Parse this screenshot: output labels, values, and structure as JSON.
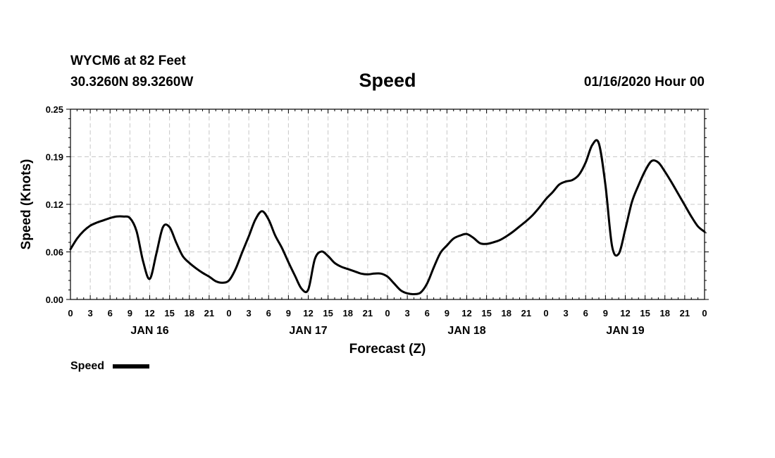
{
  "header": {
    "station": "WYCM6 at 82 Feet",
    "coords": "30.3260N 89.3260W",
    "title": "Speed",
    "date": "01/16/2020 Hour 00"
  },
  "chart_data": {
    "type": "line",
    "title": "Speed",
    "xlabel": "Forecast (Z)",
    "ylabel": "Speed (Knots)",
    "ylim": [
      0,
      0.25
    ],
    "xlim": [
      0,
      96
    ],
    "x_unit": "forecast hours",
    "y_ticks": [
      "0.00",
      "0.06",
      "0.12",
      "0.19",
      "0.25"
    ],
    "x_tick_labels": [
      "0",
      "3",
      "6",
      "9",
      "12",
      "15",
      "18",
      "21",
      "0",
      "3",
      "6",
      "9",
      "12",
      "15",
      "18",
      "21",
      "0",
      "3",
      "6",
      "9",
      "12",
      "15",
      "18",
      "21",
      "0",
      "3",
      "6",
      "9",
      "12",
      "15",
      "18",
      "21",
      "0"
    ],
    "day_labels": [
      {
        "label": "JAN 16",
        "hour": 12
      },
      {
        "label": "JAN 17",
        "hour": 36
      },
      {
        "label": "JAN 18",
        "hour": 60
      },
      {
        "label": "JAN 19",
        "hour": 84
      }
    ],
    "grid": true,
    "legend": "bottom-left",
    "series": [
      {
        "name": "Speed",
        "color": "#000000",
        "x": [
          0,
          1,
          2,
          3,
          4,
          5,
          6,
          7,
          8,
          9,
          10,
          11,
          12,
          13,
          14,
          15,
          16,
          17,
          18,
          19,
          20,
          21,
          22,
          23,
          24,
          25,
          26,
          27,
          28,
          29,
          30,
          31,
          32,
          33,
          34,
          35,
          36,
          37,
          38,
          39,
          40,
          41,
          42,
          43,
          44,
          45,
          46,
          47,
          48,
          49,
          50,
          51,
          52,
          53,
          54,
          55,
          56,
          57,
          58,
          59,
          60,
          61,
          62,
          63,
          64,
          65,
          66,
          67,
          68,
          69,
          70,
          71,
          72,
          73,
          74,
          75,
          76,
          77,
          78,
          79,
          80,
          81,
          82,
          83,
          84,
          85,
          86,
          87,
          88,
          89,
          90,
          91,
          92,
          93,
          94,
          95,
          96
        ],
        "values": [
          0.066,
          0.08,
          0.09,
          0.097,
          0.101,
          0.104,
          0.107,
          0.109,
          0.109,
          0.107,
          0.09,
          0.05,
          0.027,
          0.06,
          0.095,
          0.095,
          0.075,
          0.057,
          0.048,
          0.041,
          0.035,
          0.03,
          0.024,
          0.022,
          0.025,
          0.04,
          0.062,
          0.083,
          0.105,
          0.116,
          0.105,
          0.084,
          0.068,
          0.049,
          0.031,
          0.014,
          0.013,
          0.053,
          0.063,
          0.057,
          0.048,
          0.043,
          0.04,
          0.037,
          0.034,
          0.033,
          0.034,
          0.034,
          0.03,
          0.021,
          0.012,
          0.008,
          0.007,
          0.009,
          0.021,
          0.042,
          0.061,
          0.071,
          0.08,
          0.084,
          0.086,
          0.081,
          0.074,
          0.073,
          0.075,
          0.078,
          0.083,
          0.089,
          0.096,
          0.103,
          0.111,
          0.121,
          0.132,
          0.141,
          0.151,
          0.155,
          0.157,
          0.164,
          0.18,
          0.203,
          0.205,
          0.15,
          0.07,
          0.06,
          0.092,
          0.128,
          0.15,
          0.169,
          0.182,
          0.18,
          0.168,
          0.154,
          0.139,
          0.124,
          0.109,
          0.096,
          0.089
        ]
      }
    ]
  },
  "legend": {
    "label": "Speed"
  }
}
